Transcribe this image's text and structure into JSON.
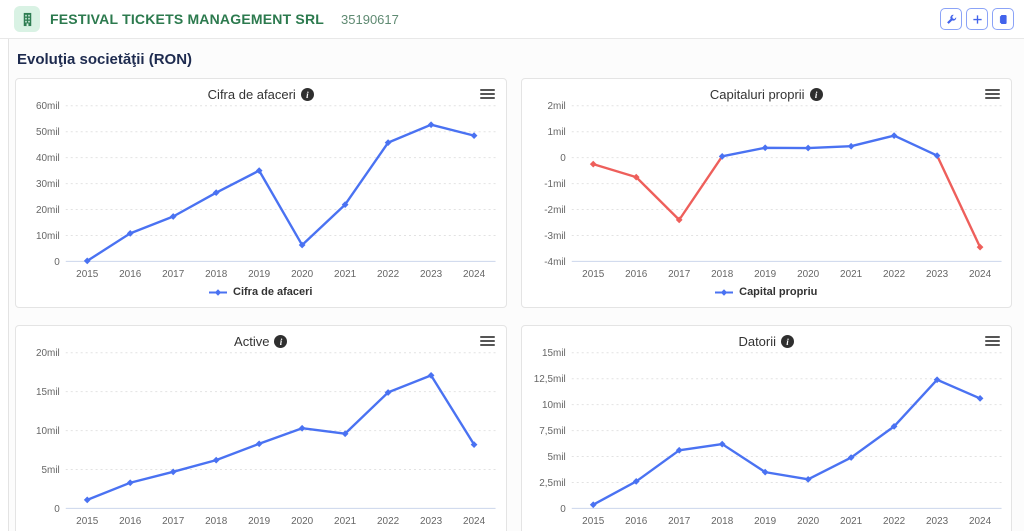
{
  "header": {
    "company_name": "FESTIVAL TICKETS MANAGEMENT SRL",
    "company_id": "35190617",
    "toolbar": {
      "settings_icon": "wrench-icon",
      "add_icon": "plus-icon",
      "report_icon": "document-icon"
    }
  },
  "page": {
    "title": "Evoluţia societăţii (RON)"
  },
  "colors": {
    "series_blue": "#4a72f2",
    "series_negative_red": "#ee5f5b",
    "brand_green": "#2c7a4e",
    "brand_green_bg": "#d9f2e4",
    "toolbar_blue": "#4263eb"
  },
  "chart_data": [
    {
      "type": "line",
      "title": "Cifra de afaceri",
      "legend": "Cifra de afaceri",
      "value_unit": "millions RON",
      "categories": [
        "2015",
        "2016",
        "2017",
        "2018",
        "2019",
        "2020",
        "2021",
        "2022",
        "2023",
        "2024"
      ],
      "values": [
        0.2,
        10.8,
        17.3,
        26.5,
        35.0,
        6.3,
        21.9,
        45.8,
        52.7,
        48.5
      ],
      "ylim": [
        0,
        60
      ],
      "yticks": [
        {
          "v": 0,
          "label": "0"
        },
        {
          "v": 10,
          "label": "10mil"
        },
        {
          "v": 20,
          "label": "20mil"
        },
        {
          "v": 30,
          "label": "30mil"
        },
        {
          "v": 40,
          "label": "40mil"
        },
        {
          "v": 50,
          "label": "50mil"
        },
        {
          "v": 60,
          "label": "60mil"
        }
      ],
      "color": "#4a72f2",
      "grid": true,
      "legend_position": "bottom"
    },
    {
      "type": "line",
      "title": "Capitaluri proprii",
      "legend": "Capital propriu",
      "value_unit": "millions RON",
      "categories": [
        "2015",
        "2016",
        "2017",
        "2018",
        "2019",
        "2020",
        "2021",
        "2022",
        "2023",
        "2024"
      ],
      "values": [
        -0.25,
        -0.75,
        -2.4,
        0.05,
        0.38,
        0.37,
        0.44,
        0.85,
        0.08,
        -3.45
      ],
      "ylim": [
        -4,
        2
      ],
      "yticks": [
        {
          "v": 2,
          "label": "2mil"
        },
        {
          "v": 1,
          "label": "1mil"
        },
        {
          "v": 0,
          "label": "0"
        },
        {
          "v": -1,
          "label": "-1mil"
        },
        {
          "v": -2,
          "label": "-2mil"
        },
        {
          "v": -3,
          "label": "-3mil"
        },
        {
          "v": -4,
          "label": "-4mil"
        }
      ],
      "color": "#4a72f2",
      "negative_color": "#ee5f5b",
      "grid": true,
      "legend_position": "bottom"
    },
    {
      "type": "line",
      "title": "Active",
      "legend": null,
      "value_unit": "millions RON",
      "categories": [
        "2015",
        "2016",
        "2017",
        "2018",
        "2019",
        "2020",
        "2021",
        "2022",
        "2023",
        "2024"
      ],
      "values": [
        1.1,
        3.3,
        4.7,
        6.2,
        8.3,
        10.3,
        9.6,
        14.9,
        17.1,
        8.2
      ],
      "ylim": [
        0,
        20
      ],
      "yticks": [
        {
          "v": 0,
          "label": "0"
        },
        {
          "v": 5,
          "label": "5mil"
        },
        {
          "v": 10,
          "label": "10mil"
        },
        {
          "v": 15,
          "label": "15mil"
        },
        {
          "v": 20,
          "label": "20mil"
        }
      ],
      "color": "#4a72f2",
      "grid": true,
      "legend_position": "bottom"
    },
    {
      "type": "line",
      "title": "Datorii",
      "legend": null,
      "value_unit": "millions RON",
      "categories": [
        "2015",
        "2016",
        "2017",
        "2018",
        "2019",
        "2020",
        "2021",
        "2022",
        "2023",
        "2024"
      ],
      "values": [
        0.35,
        2.6,
        5.6,
        6.2,
        3.5,
        2.8,
        4.9,
        7.9,
        12.4,
        10.6
      ],
      "ylim": [
        0,
        15
      ],
      "yticks": [
        {
          "v": 0,
          "label": "0"
        },
        {
          "v": 2.5,
          "label": "2,5mil"
        },
        {
          "v": 5,
          "label": "5mil"
        },
        {
          "v": 7.5,
          "label": "7,5mil"
        },
        {
          "v": 10,
          "label": "10mil"
        },
        {
          "v": 12.5,
          "label": "12,5mil"
        },
        {
          "v": 15,
          "label": "15mil"
        }
      ],
      "color": "#4a72f2",
      "grid": true,
      "legend_position": "bottom"
    }
  ]
}
